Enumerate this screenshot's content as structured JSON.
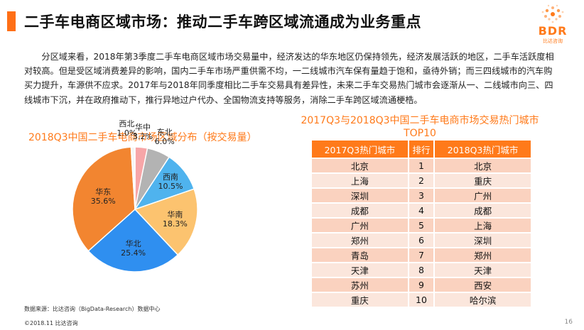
{
  "header": {
    "title": "二手车电商区域市场：推动二手车跨区域流通成为业务重点",
    "logo_text": "BDR",
    "logo_sub": "比达咨询"
  },
  "intro": "分区域来看，2018年第3季度二手车电商区域市场交易量中，经济发达的华东地区仍保持领先，经济发展活跃的地区，二手车活跃度相对较高。但是受区域消费差异的影响，国内二手车市场严重供需不均，一二线城市汽车保有量趋于饱和，亟待外销；而三四线城市的汽车购买力提升，车源供不应求。2017年与2018年同季度相比二手车交易具有差异性，未来二手车交易热门城市会逐渐从一、二线城市向三、四线城市下沉，并在政府推动下，推行异地过户代办、全国物流支持等服务，消除二手车跨区域流通梗梏。",
  "pie": {
    "title": "2018Q3中国二手车电商市场区域分布（按交易量）"
  },
  "chart_data": {
    "type": "pie",
    "title": "2018Q3中国二手车电商市场区域分布（按交易量）",
    "slices": [
      {
        "name": "华中",
        "value": 3.2,
        "label": "3.2%",
        "color": "#f7a6a8"
      },
      {
        "name": "东北",
        "value": 6.0,
        "label": "6.0%",
        "color": "#b3b3b3"
      },
      {
        "name": "西南",
        "value": 10.5,
        "label": "10.5%",
        "color": "#4fb3ee"
      },
      {
        "name": "华南",
        "value": 18.3,
        "label": "18.3%",
        "color": "#fcc36f"
      },
      {
        "name": "华北",
        "value": 25.4,
        "label": "25.4%",
        "color": "#2f8ff0"
      },
      {
        "name": "华东",
        "value": 35.6,
        "label": "35.6%",
        "color": "#f28530"
      },
      {
        "name": "西北",
        "value": 1.0,
        "label": "1.0%",
        "color": "#f5f5f5"
      }
    ]
  },
  "table": {
    "title_line1": "2017Q3与2018Q3中国二手车电商市场交易热门城市",
    "title_line2": "TOP10",
    "headers": [
      "2017Q3热门城市",
      "排行",
      "2018Q3热门城市"
    ],
    "rows": [
      [
        "北京",
        "1",
        "北京"
      ],
      [
        "上海",
        "2",
        "重庆"
      ],
      [
        "深圳",
        "3",
        "广州"
      ],
      [
        "成都",
        "4",
        "成都"
      ],
      [
        "广州",
        "5",
        "上海"
      ],
      [
        "郑州",
        "6",
        "深圳"
      ],
      [
        "青岛",
        "7",
        "郑州"
      ],
      [
        "天津",
        "8",
        "天津"
      ],
      [
        "苏州",
        "9",
        "西安"
      ],
      [
        "重庆",
        "10",
        "哈尔滨"
      ]
    ]
  },
  "footer": {
    "source": "数据来源：比达咨询（BigData-Research）数据中心",
    "copyright": "©2018.11 比达咨询",
    "page": "16"
  }
}
